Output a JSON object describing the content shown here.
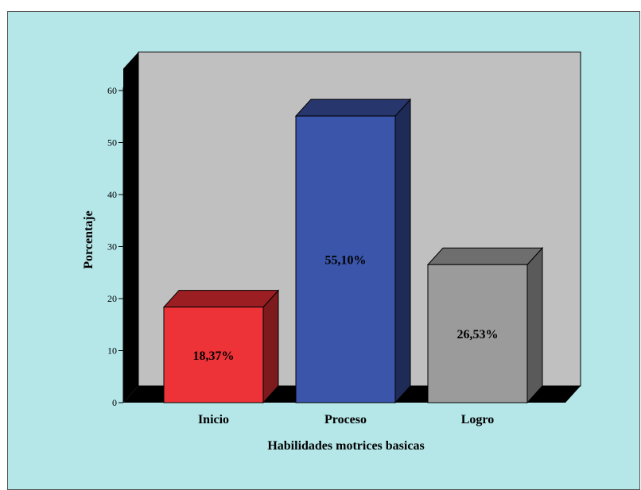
{
  "chart_data": {
    "type": "bar",
    "title": "",
    "xlabel": "Habilidades motrices basicas",
    "ylabel": "Porcentaje",
    "categories": [
      "Inicio",
      "Proceso",
      "Logro"
    ],
    "values": [
      18.37,
      55.1,
      26.53
    ],
    "data_labels": [
      "18,37%",
      "55,10%",
      "26,53%"
    ],
    "ylim": [
      0,
      60
    ],
    "yticks": [
      "0",
      "10",
      "20",
      "30",
      "40",
      "50",
      "60"
    ],
    "three_d": true,
    "grid": false,
    "legend": "none",
    "colors": {
      "bars": [
        "#ee3338",
        "#3a55aa",
        "#9b9b9b"
      ],
      "bar_tops": [
        "#9b1e22",
        "#28366e",
        "#6e6e6e"
      ],
      "bar_sides": [
        "#7d1a1d",
        "#1f2b57",
        "#5a5a5a"
      ],
      "back_wall": "#c0c0c0",
      "side_wall": "#000000",
      "floor": "#000000",
      "frame_background": "#b5e6e8"
    }
  }
}
